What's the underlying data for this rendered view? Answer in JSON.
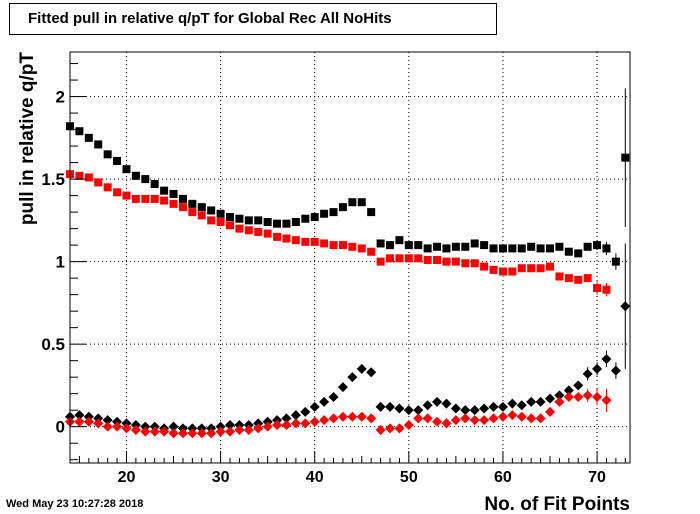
{
  "timestamp": "Wed May 23 10:27:28 2018",
  "colors": {
    "series_black": "#000000",
    "series_red": "#ff0000"
  },
  "chart_data": {
    "type": "scatter",
    "title": "Fitted pull in relative q/pT for Global Rec All NoHits",
    "xlabel": "No. of Fit Points",
    "ylabel": "pull in relative q/pT",
    "xlim": [
      14,
      73.5
    ],
    "ylim": [
      -0.22,
      2.27
    ],
    "x_ticks": [
      20,
      30,
      40,
      50,
      60,
      70
    ],
    "y_ticks": [
      0,
      0.5,
      1,
      1.5,
      2
    ],
    "x_tick_labels": [
      "20",
      "30",
      "40",
      "50",
      "60",
      "70"
    ],
    "y_tick_labels": [
      "0",
      "0.5",
      "1",
      "1.5",
      "2"
    ],
    "grid": true,
    "series": [
      {
        "color": "#000000",
        "marker": "square",
        "points": [
          [
            14,
            1.82
          ],
          [
            15,
            1.79
          ],
          [
            16,
            1.75
          ],
          [
            17,
            1.71
          ],
          [
            18,
            1.65
          ],
          [
            19,
            1.61
          ],
          [
            20,
            1.56
          ],
          [
            21,
            1.52
          ],
          [
            22,
            1.5
          ],
          [
            23,
            1.47
          ],
          [
            24,
            1.43
          ],
          [
            25,
            1.41
          ],
          [
            26,
            1.38
          ],
          [
            27,
            1.35
          ],
          [
            28,
            1.33
          ],
          [
            29,
            1.31
          ],
          [
            30,
            1.29
          ],
          [
            31,
            1.27
          ],
          [
            32,
            1.26
          ],
          [
            33,
            1.25
          ],
          [
            34,
            1.25
          ],
          [
            35,
            1.24
          ],
          [
            36,
            1.23
          ],
          [
            37,
            1.23
          ],
          [
            38,
            1.24
          ],
          [
            39,
            1.26
          ],
          [
            40,
            1.27
          ],
          [
            41,
            1.29
          ],
          [
            42,
            1.3
          ],
          [
            43,
            1.33
          ],
          [
            44,
            1.36
          ],
          [
            45,
            1.36
          ],
          [
            46,
            1.3
          ],
          [
            47,
            1.11
          ],
          [
            48,
            1.1
          ],
          [
            49,
            1.13
          ],
          [
            50,
            1.1
          ],
          [
            51,
            1.1
          ],
          [
            52,
            1.08
          ],
          [
            53,
            1.09
          ],
          [
            54,
            1.08
          ],
          [
            55,
            1.09
          ],
          [
            56,
            1.09
          ],
          [
            57,
            1.11
          ],
          [
            58,
            1.1
          ],
          [
            59,
            1.08
          ],
          [
            60,
            1.08
          ],
          [
            61,
            1.08
          ],
          [
            62,
            1.08
          ],
          [
            63,
            1.09
          ],
          [
            64,
            1.08
          ],
          [
            65,
            1.08
          ],
          [
            66,
            1.09
          ],
          [
            67,
            1.06
          ],
          [
            68,
            1.05
          ],
          [
            69,
            1.09
          ],
          [
            70,
            1.1
          ],
          [
            71,
            1.08
          ],
          [
            72,
            1.0
          ],
          [
            73,
            1.63
          ]
        ],
        "errors": {
          "70": 0.03,
          "71": 0.04,
          "72": 0.05,
          "73": 0.42
        }
      },
      {
        "color": "#ff0000",
        "marker": "square",
        "points": [
          [
            14,
            1.53
          ],
          [
            15,
            1.52
          ],
          [
            16,
            1.51
          ],
          [
            17,
            1.48
          ],
          [
            18,
            1.45
          ],
          [
            19,
            1.42
          ],
          [
            20,
            1.4
          ],
          [
            21,
            1.38
          ],
          [
            22,
            1.38
          ],
          [
            23,
            1.38
          ],
          [
            24,
            1.37
          ],
          [
            25,
            1.35
          ],
          [
            26,
            1.33
          ],
          [
            27,
            1.3
          ],
          [
            28,
            1.28
          ],
          [
            29,
            1.25
          ],
          [
            30,
            1.24
          ],
          [
            31,
            1.22
          ],
          [
            32,
            1.2
          ],
          [
            33,
            1.19
          ],
          [
            34,
            1.18
          ],
          [
            35,
            1.17
          ],
          [
            36,
            1.15
          ],
          [
            37,
            1.14
          ],
          [
            38,
            1.13
          ],
          [
            39,
            1.12
          ],
          [
            40,
            1.12
          ],
          [
            41,
            1.11
          ],
          [
            42,
            1.1
          ],
          [
            43,
            1.1
          ],
          [
            44,
            1.09
          ],
          [
            45,
            1.08
          ],
          [
            46,
            1.06
          ],
          [
            47,
            1.0
          ],
          [
            48,
            1.02
          ],
          [
            49,
            1.02
          ],
          [
            50,
            1.02
          ],
          [
            51,
            1.02
          ],
          [
            52,
            1.01
          ],
          [
            53,
            1.01
          ],
          [
            54,
            1.0
          ],
          [
            55,
            1.0
          ],
          [
            56,
            0.99
          ],
          [
            57,
            0.99
          ],
          [
            58,
            0.97
          ],
          [
            59,
            0.95
          ],
          [
            60,
            0.94
          ],
          [
            61,
            0.94
          ],
          [
            62,
            0.96
          ],
          [
            63,
            0.96
          ],
          [
            64,
            0.96
          ],
          [
            65,
            0.97
          ],
          [
            66,
            0.91
          ],
          [
            67,
            0.9
          ],
          [
            68,
            0.89
          ],
          [
            69,
            0.9
          ],
          [
            70,
            0.84
          ],
          [
            71,
            0.83
          ]
        ],
        "errors": {
          "70": 0.04,
          "71": 0.04
        }
      },
      {
        "color": "#000000",
        "marker": "diamond",
        "points": [
          [
            14,
            0.06
          ],
          [
            15,
            0.07
          ],
          [
            16,
            0.06
          ],
          [
            17,
            0.05
          ],
          [
            18,
            0.04
          ],
          [
            19,
            0.03
          ],
          [
            20,
            0.02
          ],
          [
            21,
            0.01
          ],
          [
            22,
            0.0
          ],
          [
            23,
            0.0
          ],
          [
            24,
            -0.01
          ],
          [
            25,
            0.0
          ],
          [
            26,
            -0.01
          ],
          [
            27,
            -0.01
          ],
          [
            28,
            -0.01
          ],
          [
            29,
            -0.01
          ],
          [
            30,
            0.0
          ],
          [
            31,
            0.01
          ],
          [
            32,
            0.01
          ],
          [
            33,
            0.01
          ],
          [
            34,
            0.02
          ],
          [
            35,
            0.03
          ],
          [
            36,
            0.04
          ],
          [
            37,
            0.05
          ],
          [
            38,
            0.07
          ],
          [
            39,
            0.09
          ],
          [
            40,
            0.12
          ],
          [
            41,
            0.15
          ],
          [
            42,
            0.18
          ],
          [
            43,
            0.24
          ],
          [
            44,
            0.3
          ],
          [
            45,
            0.35
          ],
          [
            46,
            0.33
          ],
          [
            47,
            0.12
          ],
          [
            48,
            0.12
          ],
          [
            49,
            0.11
          ],
          [
            50,
            0.1
          ],
          [
            51,
            0.1
          ],
          [
            52,
            0.13
          ],
          [
            53,
            0.15
          ],
          [
            54,
            0.14
          ],
          [
            55,
            0.11
          ],
          [
            56,
            0.1
          ],
          [
            57,
            0.1
          ],
          [
            58,
            0.11
          ],
          [
            59,
            0.12
          ],
          [
            60,
            0.12
          ],
          [
            61,
            0.14
          ],
          [
            62,
            0.13
          ],
          [
            63,
            0.15
          ],
          [
            64,
            0.15
          ],
          [
            65,
            0.17
          ],
          [
            66,
            0.19
          ],
          [
            67,
            0.22
          ],
          [
            68,
            0.25
          ],
          [
            69,
            0.32
          ],
          [
            70,
            0.35
          ],
          [
            71,
            0.41
          ],
          [
            72,
            0.34
          ],
          [
            73,
            0.73
          ]
        ],
        "errors": {
          "69": 0.04,
          "70": 0.04,
          "71": 0.05,
          "72": 0.05,
          "73": 0.38
        }
      },
      {
        "color": "#ff0000",
        "marker": "diamond",
        "points": [
          [
            14,
            0.03
          ],
          [
            15,
            0.03
          ],
          [
            16,
            0.03
          ],
          [
            17,
            0.02
          ],
          [
            18,
            0.0
          ],
          [
            19,
            0.0
          ],
          [
            20,
            -0.01
          ],
          [
            21,
            -0.02
          ],
          [
            22,
            -0.03
          ],
          [
            23,
            -0.03
          ],
          [
            24,
            -0.03
          ],
          [
            25,
            -0.04
          ],
          [
            26,
            -0.04
          ],
          [
            27,
            -0.04
          ],
          [
            28,
            -0.04
          ],
          [
            29,
            -0.04
          ],
          [
            30,
            -0.03
          ],
          [
            31,
            -0.03
          ],
          [
            32,
            -0.02
          ],
          [
            33,
            -0.02
          ],
          [
            34,
            -0.01
          ],
          [
            35,
            0.0
          ],
          [
            36,
            0.01
          ],
          [
            37,
            0.01
          ],
          [
            38,
            0.02
          ],
          [
            39,
            0.02
          ],
          [
            40,
            0.03
          ],
          [
            41,
            0.04
          ],
          [
            42,
            0.05
          ],
          [
            43,
            0.06
          ],
          [
            44,
            0.06
          ],
          [
            45,
            0.06
          ],
          [
            46,
            0.05
          ],
          [
            47,
            -0.02
          ],
          [
            48,
            -0.01
          ],
          [
            49,
            -0.01
          ],
          [
            50,
            0.01
          ],
          [
            51,
            0.05
          ],
          [
            52,
            0.05
          ],
          [
            53,
            0.03
          ],
          [
            54,
            0.02
          ],
          [
            55,
            0.04
          ],
          [
            56,
            0.05
          ],
          [
            57,
            0.04
          ],
          [
            58,
            0.04
          ],
          [
            59,
            0.05
          ],
          [
            60,
            0.06
          ],
          [
            61,
            0.07
          ],
          [
            62,
            0.06
          ],
          [
            63,
            0.05
          ],
          [
            64,
            0.05
          ],
          [
            65,
            0.09
          ],
          [
            66,
            0.15
          ],
          [
            67,
            0.18
          ],
          [
            68,
            0.18
          ],
          [
            69,
            0.19
          ],
          [
            70,
            0.18
          ],
          [
            71,
            0.16
          ]
        ],
        "errors": {
          "69": 0.04,
          "70": 0.05,
          "71": 0.07
        }
      }
    ]
  }
}
